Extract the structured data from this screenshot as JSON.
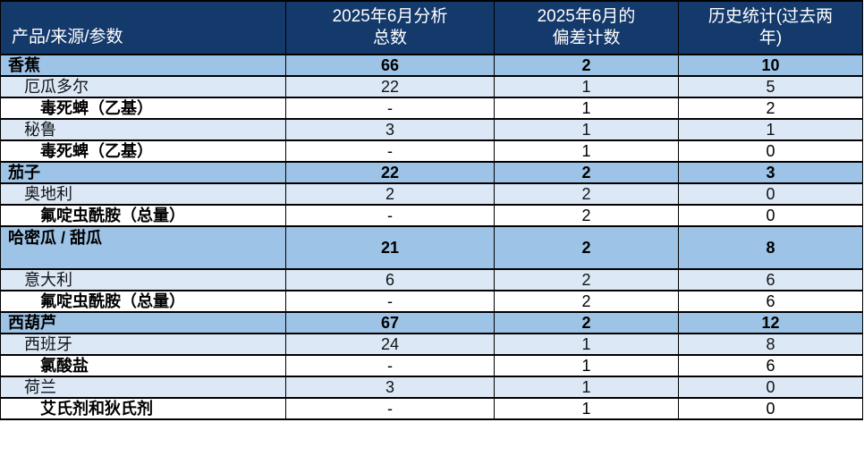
{
  "colors": {
    "header_bg": "#14396B",
    "header_text": "#FFFFFF",
    "product_row_bg": "#9DC3E6",
    "country_row_bg": "#DCE8F5",
    "parameter_row_bg": "#FFFFFF",
    "border": "#000000",
    "body_text": "#000000"
  },
  "table": {
    "columns": [
      "产品/来源/参数",
      "2025年6月分析\n总数",
      "2025年6月的\n偏差计数",
      "历史统计(过去两\n年)"
    ],
    "rows": [
      {
        "type": "product",
        "label": "香蕉",
        "values": [
          "66",
          "2",
          "10"
        ]
      },
      {
        "type": "country",
        "label": "厄瓜多尔",
        "values": [
          "22",
          "1",
          "5"
        ]
      },
      {
        "type": "parameter",
        "label": "毒死蜱（乙基）",
        "values": [
          "-",
          "1",
          "2"
        ]
      },
      {
        "type": "country",
        "label": "秘鲁",
        "values": [
          "3",
          "1",
          "1"
        ]
      },
      {
        "type": "parameter",
        "label": "毒死蜱（乙基）",
        "values": [
          "-",
          "1",
          "0"
        ]
      },
      {
        "type": "product",
        "label": "茄子",
        "values": [
          "22",
          "2",
          "3"
        ]
      },
      {
        "type": "country",
        "label": "奥地利",
        "values": [
          "2",
          "2",
          "0"
        ]
      },
      {
        "type": "parameter",
        "label": "氟啶虫酰胺（总量）",
        "values": [
          "-",
          "2",
          "0"
        ]
      },
      {
        "type": "product_tall",
        "label": "哈密瓜 / 甜瓜",
        "values": [
          "21",
          "2",
          "8"
        ]
      },
      {
        "type": "country",
        "label": "意大利",
        "values": [
          "6",
          "2",
          "6"
        ]
      },
      {
        "type": "parameter",
        "label": "氟啶虫酰胺（总量）",
        "values": [
          "-",
          "2",
          "6"
        ]
      },
      {
        "type": "product",
        "label": "西葫芦",
        "values": [
          "67",
          "2",
          "12"
        ]
      },
      {
        "type": "country",
        "label": "西班牙",
        "values": [
          "24",
          "1",
          "8"
        ]
      },
      {
        "type": "parameter",
        "label": "氯酸盐",
        "values": [
          "-",
          "1",
          "6"
        ]
      },
      {
        "type": "country",
        "label": "荷兰",
        "values": [
          "3",
          "1",
          "0"
        ]
      },
      {
        "type": "parameter",
        "label": "艾氏剂和狄氏剂",
        "values": [
          "-",
          "1",
          "0"
        ]
      }
    ]
  }
}
